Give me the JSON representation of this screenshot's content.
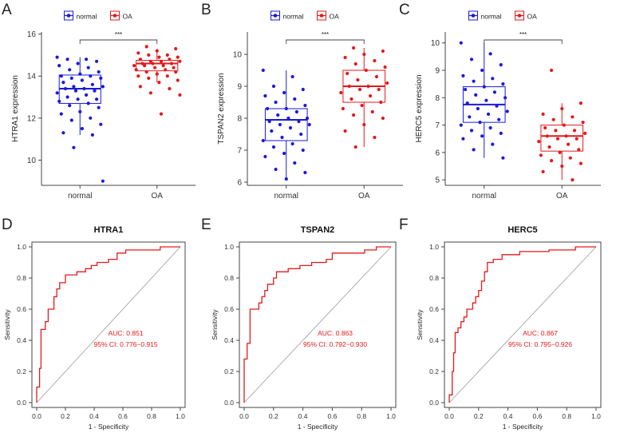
{
  "chart_data": [
    {
      "panel_label": "A",
      "type": "box",
      "legend": [
        {
          "name": "normal",
          "color": "#1a1adb"
        },
        {
          "name": "OA",
          "color": "#e31a1c"
        }
      ],
      "categories": [
        "normal",
        "OA"
      ],
      "ylabel": "HTRA1 expression",
      "ylim": [
        8.8,
        16.1
      ],
      "yticks": [
        10,
        12,
        14,
        16
      ],
      "significance": "***",
      "boxes": [
        {
          "group": "normal",
          "q1": 12.7,
          "median": 13.4,
          "q3": 14.05,
          "whisker_low": 11.2,
          "whisker_high": 14.9
        },
        {
          "group": "OA",
          "q1": 14.25,
          "median": 14.6,
          "q3": 14.75,
          "whisker_low": 13.7,
          "whisker_high": 15.3
        }
      ],
      "points": [
        [
          14.9,
          14.8,
          14.8,
          14.7,
          14.6,
          14.5,
          14.4,
          14.3,
          14.2,
          14.1,
          14.0,
          14.0,
          13.9,
          13.9,
          13.8,
          13.7,
          13.6,
          13.5,
          13.5,
          13.4,
          13.4,
          13.3,
          13.3,
          13.2,
          13.1,
          13.0,
          12.9,
          12.9,
          12.8,
          12.7,
          12.6,
          12.5,
          12.3,
          12.2,
          12.0,
          11.9,
          11.7,
          11.5,
          11.3,
          11.2,
          10.6,
          9.0
        ],
        [
          15.4,
          15.3,
          15.2,
          15.1,
          15.0,
          15.0,
          14.9,
          14.9,
          14.8,
          14.8,
          14.7,
          14.7,
          14.7,
          14.6,
          14.6,
          14.6,
          14.5,
          14.5,
          14.5,
          14.4,
          14.4,
          14.3,
          14.3,
          14.2,
          14.2,
          14.1,
          14.0,
          14.0,
          13.9,
          13.8,
          13.7,
          13.5,
          13.4,
          13.2,
          13.1,
          12.2
        ]
      ]
    },
    {
      "panel_label": "B",
      "type": "box",
      "legend": [
        {
          "name": "normal",
          "color": "#1a1adb"
        },
        {
          "name": "OA",
          "color": "#e31a1c"
        }
      ],
      "categories": [
        "normal",
        "OA"
      ],
      "ylabel": "TSPAN2 expression",
      "ylim": [
        5.9,
        10.7
      ],
      "yticks": [
        6,
        7,
        8,
        9,
        10
      ],
      "significance": "***",
      "boxes": [
        {
          "group": "normal",
          "q1": 7.3,
          "median": 7.95,
          "q3": 8.3,
          "whisker_low": 6.1,
          "whisker_high": 9.5
        },
        {
          "group": "OA",
          "q1": 8.5,
          "median": 9.0,
          "q3": 9.5,
          "whisker_low": 7.1,
          "whisker_high": 10.2
        }
      ],
      "points": [
        [
          9.5,
          9.3,
          9.0,
          8.9,
          8.8,
          8.7,
          8.6,
          8.5,
          8.4,
          8.3,
          8.3,
          8.2,
          8.1,
          8.0,
          8.0,
          7.9,
          7.9,
          7.8,
          7.8,
          7.7,
          7.6,
          7.5,
          7.4,
          7.3,
          7.2,
          7.1,
          7.0,
          6.9,
          6.8,
          6.6,
          6.4,
          6.3,
          6.1
        ],
        [
          10.2,
          10.1,
          10.0,
          9.9,
          9.8,
          9.7,
          9.6,
          9.5,
          9.4,
          9.3,
          9.2,
          9.1,
          9.0,
          9.0,
          8.9,
          8.9,
          8.8,
          8.7,
          8.6,
          8.5,
          8.4,
          8.3,
          8.2,
          8.1,
          8.0,
          7.8,
          7.6,
          7.4,
          7.1
        ]
      ]
    },
    {
      "panel_label": "C",
      "type": "box",
      "legend": [
        {
          "name": "normal",
          "color": "#1a1adb"
        },
        {
          "name": "OA",
          "color": "#e31a1c"
        }
      ],
      "categories": [
        "normal",
        "OA"
      ],
      "ylabel": "HERC5 expression",
      "ylim": [
        4.8,
        10.4
      ],
      "yticks": [
        5,
        6,
        7,
        8,
        9,
        10
      ],
      "significance": "***",
      "boxes": [
        {
          "group": "normal",
          "q1": 7.1,
          "median": 7.75,
          "q3": 8.4,
          "whisker_low": 5.8,
          "whisker_high": 10.0
        },
        {
          "group": "OA",
          "q1": 6.05,
          "median": 6.6,
          "q3": 7.0,
          "whisker_low": 5.0,
          "whisker_high": 7.8
        }
      ],
      "points": [
        [
          10.0,
          9.6,
          9.4,
          9.2,
          9.0,
          8.8,
          8.7,
          8.6,
          8.5,
          8.4,
          8.3,
          8.2,
          8.1,
          8.0,
          7.9,
          7.8,
          7.7,
          7.6,
          7.5,
          7.4,
          7.3,
          7.2,
          7.1,
          7.0,
          6.9,
          6.8,
          6.7,
          6.6,
          6.5,
          6.3,
          6.1,
          5.8
        ],
        [
          9.0,
          7.8,
          7.6,
          7.4,
          7.3,
          7.2,
          7.1,
          7.0,
          6.9,
          6.8,
          6.8,
          6.7,
          6.6,
          6.6,
          6.5,
          6.5,
          6.4,
          6.3,
          6.2,
          6.1,
          6.0,
          5.9,
          5.8,
          5.7,
          5.6,
          5.5,
          5.3,
          5.0
        ]
      ]
    },
    {
      "panel_label": "D",
      "type": "roc",
      "title": "HTRA1",
      "xlabel": "1 - Specificity",
      "ylabel": "Sensitivity",
      "xlim": [
        0,
        1
      ],
      "ylim": [
        0,
        1
      ],
      "ticks": [
        "0.0",
        "0.2",
        "0.4",
        "0.6",
        "0.8",
        "1.0"
      ],
      "auc_text": "AUC: 0.851",
      "ci_text": "95% CI: 0.776−0.915",
      "curve": [
        [
          0,
          0
        ],
        [
          0,
          0.1
        ],
        [
          0.02,
          0.1
        ],
        [
          0.02,
          0.22
        ],
        [
          0.03,
          0.22
        ],
        [
          0.03,
          0.47
        ],
        [
          0.06,
          0.47
        ],
        [
          0.06,
          0.52
        ],
        [
          0.08,
          0.52
        ],
        [
          0.08,
          0.6
        ],
        [
          0.12,
          0.6
        ],
        [
          0.12,
          0.68
        ],
        [
          0.14,
          0.68
        ],
        [
          0.14,
          0.73
        ],
        [
          0.16,
          0.73
        ],
        [
          0.16,
          0.77
        ],
        [
          0.2,
          0.77
        ],
        [
          0.2,
          0.82
        ],
        [
          0.28,
          0.82
        ],
        [
          0.28,
          0.84
        ],
        [
          0.34,
          0.84
        ],
        [
          0.34,
          0.86
        ],
        [
          0.38,
          0.86
        ],
        [
          0.38,
          0.88
        ],
        [
          0.42,
          0.88
        ],
        [
          0.42,
          0.9
        ],
        [
          0.5,
          0.9
        ],
        [
          0.5,
          0.92
        ],
        [
          0.56,
          0.92
        ],
        [
          0.56,
          0.96
        ],
        [
          0.62,
          0.96
        ],
        [
          0.62,
          0.98
        ],
        [
          0.86,
          0.98
        ],
        [
          0.86,
          1
        ],
        [
          1,
          1
        ]
      ]
    },
    {
      "panel_label": "E",
      "type": "roc",
      "title": "TSPAN2",
      "xlabel": "1 - Specificity",
      "ylabel": "Sensitivity",
      "xlim": [
        0,
        1
      ],
      "ylim": [
        0,
        1
      ],
      "ticks": [
        "0.0",
        "0.2",
        "0.4",
        "0.6",
        "0.8",
        "1.0"
      ],
      "auc_text": "AUC: 0.863",
      "ci_text": "95% CI: 0.792−0.930",
      "curve": [
        [
          0,
          0
        ],
        [
          0,
          0.28
        ],
        [
          0.02,
          0.28
        ],
        [
          0.02,
          0.38
        ],
        [
          0.04,
          0.38
        ],
        [
          0.04,
          0.6
        ],
        [
          0.1,
          0.6
        ],
        [
          0.1,
          0.64
        ],
        [
          0.12,
          0.64
        ],
        [
          0.12,
          0.68
        ],
        [
          0.14,
          0.68
        ],
        [
          0.14,
          0.72
        ],
        [
          0.16,
          0.72
        ],
        [
          0.16,
          0.76
        ],
        [
          0.2,
          0.76
        ],
        [
          0.2,
          0.8
        ],
        [
          0.22,
          0.8
        ],
        [
          0.22,
          0.84
        ],
        [
          0.3,
          0.84
        ],
        [
          0.3,
          0.86
        ],
        [
          0.38,
          0.86
        ],
        [
          0.38,
          0.88
        ],
        [
          0.46,
          0.88
        ],
        [
          0.46,
          0.9
        ],
        [
          0.56,
          0.9
        ],
        [
          0.56,
          0.92
        ],
        [
          0.6,
          0.92
        ],
        [
          0.6,
          0.96
        ],
        [
          0.82,
          0.96
        ],
        [
          0.82,
          0.98
        ],
        [
          0.9,
          0.98
        ],
        [
          0.9,
          1
        ],
        [
          1,
          1
        ]
      ]
    },
    {
      "panel_label": "F",
      "type": "roc",
      "title": "HERC5",
      "xlabel": "1 - Specificity",
      "ylabel": "Sensitivity",
      "xlim": [
        0,
        1
      ],
      "ylim": [
        0,
        1
      ],
      "ticks": [
        "0.0",
        "0.2",
        "0.4",
        "0.6",
        "0.8",
        "1.0"
      ],
      "auc_text": "AUC: 0.867",
      "ci_text": "95% CI: 0.795−0.926",
      "curve": [
        [
          0,
          0
        ],
        [
          0,
          0.05
        ],
        [
          0.02,
          0.05
        ],
        [
          0.02,
          0.2
        ],
        [
          0.03,
          0.2
        ],
        [
          0.03,
          0.32
        ],
        [
          0.04,
          0.32
        ],
        [
          0.04,
          0.45
        ],
        [
          0.06,
          0.45
        ],
        [
          0.06,
          0.48
        ],
        [
          0.08,
          0.48
        ],
        [
          0.08,
          0.52
        ],
        [
          0.1,
          0.52
        ],
        [
          0.1,
          0.55
        ],
        [
          0.12,
          0.55
        ],
        [
          0.12,
          0.6
        ],
        [
          0.16,
          0.6
        ],
        [
          0.16,
          0.64
        ],
        [
          0.18,
          0.64
        ],
        [
          0.18,
          0.68
        ],
        [
          0.2,
          0.68
        ],
        [
          0.2,
          0.72
        ],
        [
          0.22,
          0.72
        ],
        [
          0.22,
          0.78
        ],
        [
          0.24,
          0.78
        ],
        [
          0.24,
          0.84
        ],
        [
          0.26,
          0.84
        ],
        [
          0.26,
          0.9
        ],
        [
          0.3,
          0.9
        ],
        [
          0.3,
          0.92
        ],
        [
          0.36,
          0.92
        ],
        [
          0.36,
          0.95
        ],
        [
          0.48,
          0.95
        ],
        [
          0.48,
          0.97
        ],
        [
          0.68,
          0.97
        ],
        [
          0.68,
          0.98
        ],
        [
          0.86,
          0.98
        ],
        [
          0.86,
          1
        ],
        [
          1,
          1
        ]
      ]
    }
  ]
}
